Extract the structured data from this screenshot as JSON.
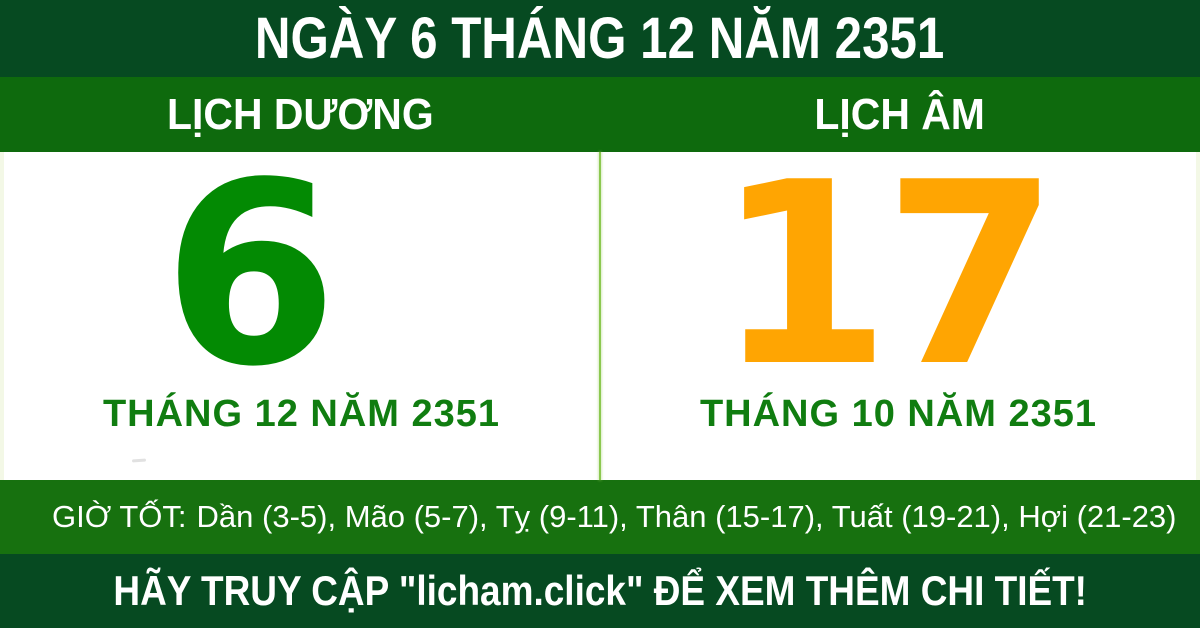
{
  "header": {
    "title": "NGÀY 6 THÁNG 12 NĂM 2351"
  },
  "calendar_bar": {
    "solar_label": "LỊCH DƯƠNG",
    "lunar_label": "LỊCH ÂM"
  },
  "solar": {
    "day": "6",
    "month_year": "THÁNG 12 NĂM 2351"
  },
  "lunar": {
    "day": "17",
    "month_year": "THÁNG 10 NĂM 2351"
  },
  "good_hours": {
    "label": "GIỜ TỐT:",
    "hours": "Dần (3-5), Mão (5-7), Tỵ (9-11), Thân (15-17), Tuất (19-21), Hợi (21-23)"
  },
  "footer": {
    "text": "HÃY TRUY CẬP \"licham.click\" ĐỂ XEM THÊM CHI TIẾT!"
  },
  "colors": {
    "dark_green": "#064a21",
    "bar_green": "#0e6a0d",
    "hours_green": "#17710f",
    "day_green": "#038a03",
    "label_green": "#107d10",
    "orange": "#ffa502",
    "divider_green": "#8cc850",
    "edge_green": "#f3f8e6",
    "text_white": "#ffffff"
  }
}
